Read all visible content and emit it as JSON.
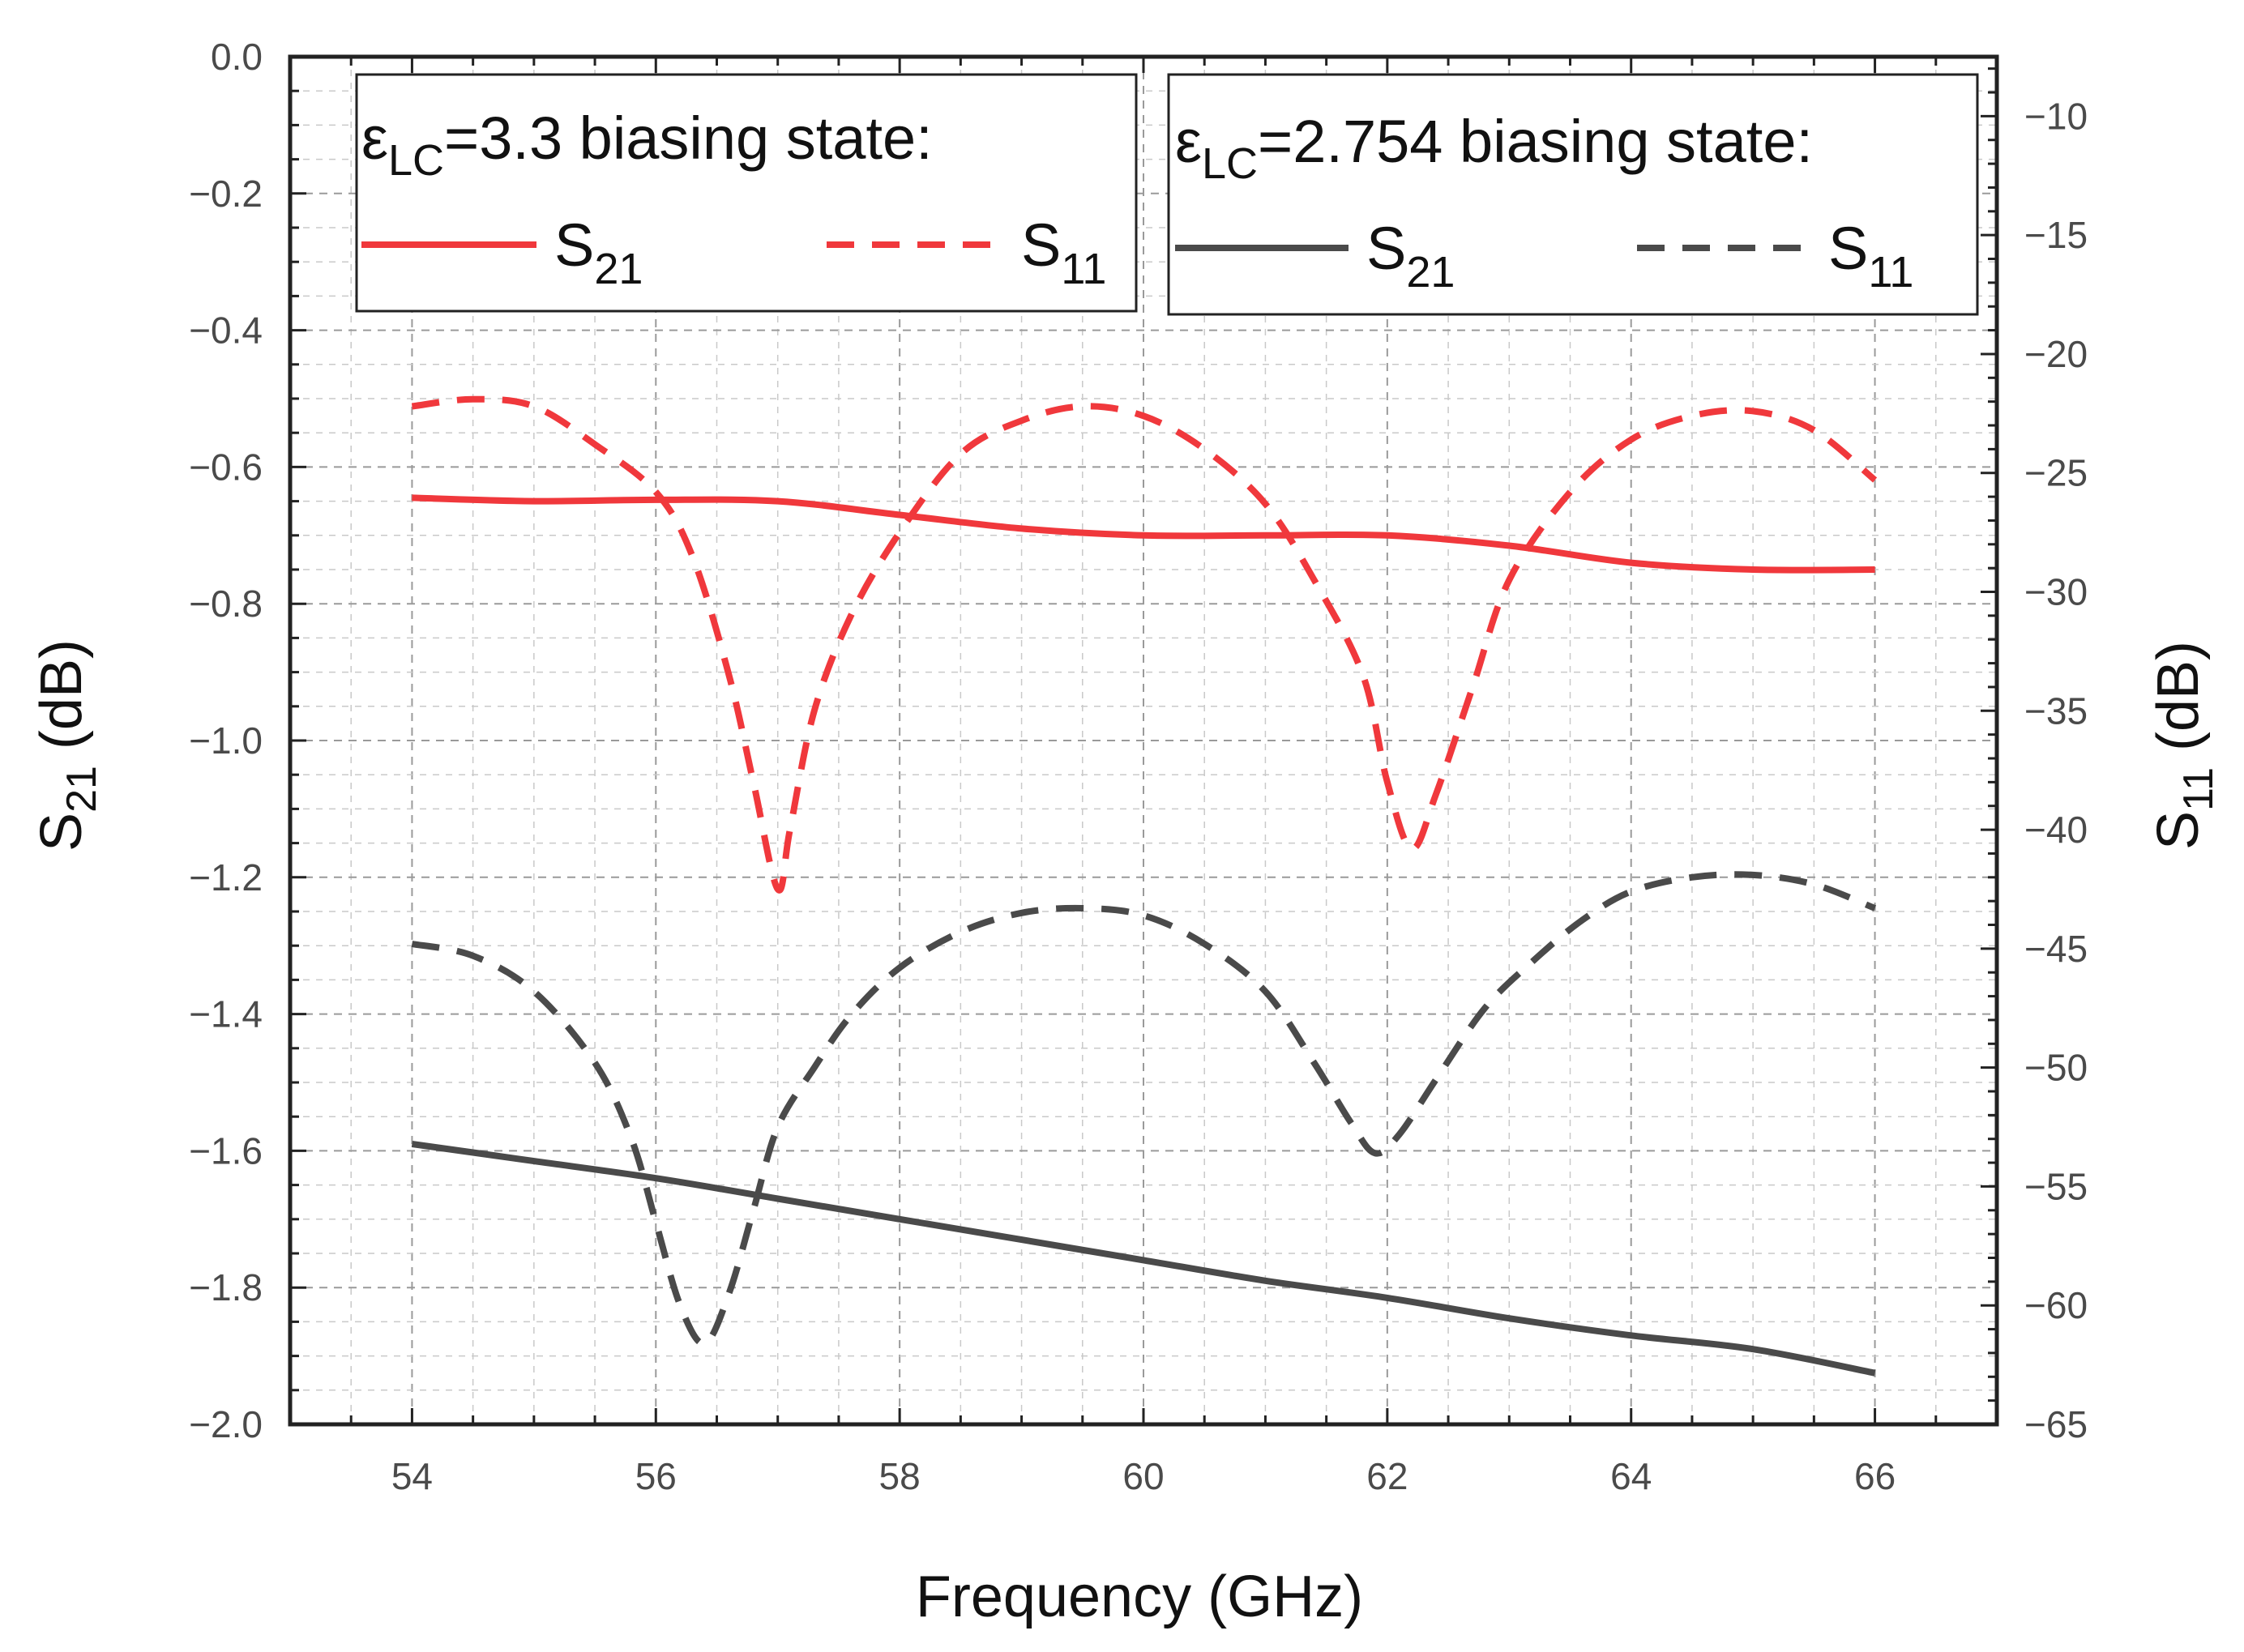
{
  "chart_data": {
    "type": "line",
    "title": "",
    "xlabel": "Frequency (GHz)",
    "ylabel_left": {
      "main": "S",
      "sub": "21",
      "unit": " (dB)"
    },
    "ylabel_right": {
      "main": "S",
      "sub": "11",
      "unit": " (dB)"
    },
    "xlim": [
      53,
      67
    ],
    "ylim_left": [
      -2.0,
      0.0
    ],
    "ylim_right": [
      -65,
      -7.5
    ],
    "x_ticks": [
      "54",
      "56",
      "58",
      "60",
      "62",
      "64",
      "66"
    ],
    "y_left_ticks": [
      "0.0",
      "−0.2",
      "−0.4",
      "−0.6",
      "−0.8",
      "−1.0",
      "−1.2",
      "−1.4",
      "−1.6",
      "−1.8",
      "−2.0"
    ],
    "y_right_ticks": [
      "−10",
      "−15",
      "−20",
      "−25",
      "−30",
      "−35",
      "−40",
      "−45",
      "−50",
      "−55",
      "−60",
      "−65"
    ],
    "grid": true,
    "legends": [
      {
        "title": {
          "symbol": "ε",
          "sub": "LC",
          "rest": "=3.3 biasing state:"
        },
        "entries": [
          {
            "main": "S",
            "sub": "21",
            "style": "solid"
          },
          {
            "main": "S",
            "sub": "11",
            "style": "dashed"
          }
        ],
        "placement": "top-left"
      },
      {
        "title": {
          "symbol": "ε",
          "sub": "LC",
          "rest": "=2.754 biasing state:"
        },
        "entries": [
          {
            "main": "S",
            "sub": "21",
            "style": "solid"
          },
          {
            "main": "S",
            "sub": "11",
            "style": "dashed"
          }
        ],
        "placement": "top-right"
      }
    ],
    "series": [
      {
        "state": "3.3",
        "param": "S21",
        "axis": "left",
        "color": "#f0383c",
        "style": "solid",
        "x": [
          54,
          55,
          56,
          57,
          58,
          59,
          60,
          61,
          62,
          63,
          64,
          65,
          66
        ],
        "y": [
          -0.645,
          -0.65,
          -0.648,
          -0.65,
          -0.67,
          -0.69,
          -0.7,
          -0.7,
          -0.7,
          -0.715,
          -0.74,
          -0.75,
          -0.75
        ]
      },
      {
        "state": "3.3",
        "param": "S11",
        "axis": "right",
        "color": "#f0383c",
        "style": "dashed",
        "x": [
          54,
          54.5,
          55,
          55.5,
          56,
          56.3,
          56.6,
          56.8,
          57.0,
          57.1,
          57.3,
          57.6,
          58.0,
          58.5,
          59,
          59.5,
          60,
          60.5,
          61,
          61.4,
          61.8,
          62.0,
          62.2,
          62.4,
          62.7,
          63,
          63.5,
          64,
          64.5,
          65,
          65.5,
          66
        ],
        "y": [
          -22.2,
          -21.9,
          -22.2,
          -23.8,
          -25.8,
          -28.5,
          -33.5,
          -38,
          -42.5,
          -40,
          -35,
          -31,
          -27.5,
          -24.2,
          -22.8,
          -22.2,
          -22.6,
          -24,
          -26.3,
          -29.5,
          -33.5,
          -38,
          -40.8,
          -38.5,
          -34,
          -29.5,
          -25.8,
          -23.6,
          -22.6,
          -22.4,
          -23.2,
          -25.3
        ]
      },
      {
        "state": "2.754",
        "param": "S21",
        "axis": "left",
        "color": "#4a4a4a",
        "style": "solid",
        "x": [
          54,
          55,
          56,
          57,
          58,
          59,
          60,
          61,
          62,
          63,
          64,
          65,
          66
        ],
        "y": [
          -1.59,
          -1.615,
          -1.64,
          -1.67,
          -1.7,
          -1.73,
          -1.76,
          -1.79,
          -1.815,
          -1.845,
          -1.87,
          -1.89,
          -1.925
        ]
      },
      {
        "state": "2.754",
        "param": "S11",
        "axis": "right",
        "color": "#4a4a4a",
        "style": "dashed",
        "x": [
          54,
          54.5,
          55,
          55.5,
          55.8,
          56.0,
          56.2,
          56.4,
          56.6,
          56.8,
          57.0,
          57.3,
          57.6,
          58,
          58.5,
          59,
          59.5,
          60,
          60.5,
          61,
          61.4,
          61.7,
          61.9,
          62.1,
          62.4,
          62.8,
          63.2,
          63.6,
          64,
          64.5,
          65,
          65.5,
          66
        ],
        "y": [
          -44.8,
          -45.3,
          -46.8,
          -49.8,
          -53,
          -56.5,
          -60,
          -61.6,
          -59.5,
          -56,
          -52.5,
          -50,
          -47.8,
          -45.8,
          -44.3,
          -43.5,
          -43.3,
          -43.6,
          -44.8,
          -46.8,
          -49.8,
          -52.3,
          -53.6,
          -52.8,
          -50.5,
          -47.5,
          -45.5,
          -43.8,
          -42.6,
          -42,
          -41.9,
          -42.3,
          -43.3
        ]
      }
    ]
  }
}
